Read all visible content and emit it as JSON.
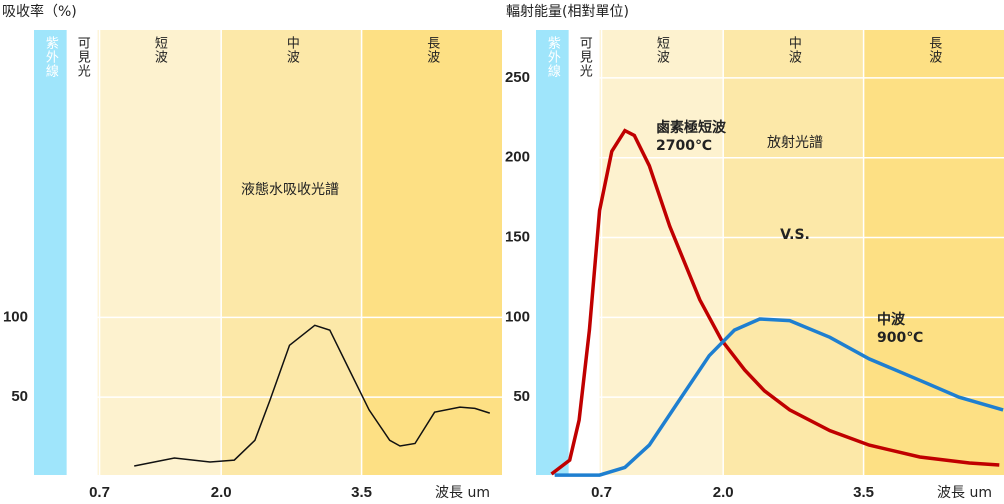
{
  "chart_data": [
    {
      "type": "line",
      "title": "吸收率（%)",
      "xlabel": "波長 um",
      "xlim": [
        0,
        5
      ],
      "ylim": [
        0,
        280
      ],
      "xticks": [
        0.7,
        {
          "value": 2,
          "label": "2.0"
        },
        3.5
      ],
      "yticks": [
        50,
        100
      ],
      "bands": [
        {
          "label": "紫外線",
          "from": 0,
          "to": 0.35,
          "color": "#9fe5fb"
        },
        {
          "label": "可見光",
          "from": 0.35,
          "to": 0.68,
          "color": "#ffffff"
        },
        {
          "label": "短波",
          "from": 0.68,
          "to": 2.0,
          "color": "#fdf2cf"
        },
        {
          "label": "中波",
          "from": 2.0,
          "to": 3.5,
          "color": "#fce8a8"
        },
        {
          "label": "長波",
          "from": 3.5,
          "to": 5.0,
          "color": "#fde084"
        }
      ],
      "annotations": [
        "液態水吸收光譜"
      ],
      "series": [
        {
          "color": "#111111",
          "x": [
            1.07,
            1.5,
            1.88,
            2.14,
            2.36,
            2.52,
            2.73,
            3.0,
            3.16,
            3.37,
            3.58,
            3.8,
            3.91,
            4.07,
            4.28,
            4.55,
            4.71,
            4.87
          ],
          "values": [
            6.9,
            11.9,
            9.4,
            10.6,
            23,
            48,
            82.5,
            95,
            92,
            67,
            42,
            23,
            19.4,
            21,
            40.6,
            43.8,
            43,
            40
          ]
        }
      ]
    },
    {
      "type": "line",
      "title": "輻射能量(相對單位)",
      "xlabel": "波長 um",
      "xlim": [
        0,
        5
      ],
      "ylim": [
        0,
        280
      ],
      "xticks": [
        0.7,
        {
          "value": 2,
          "label": "2.0"
        },
        3.5
      ],
      "yticks": [
        50,
        100,
        150,
        200,
        250
      ],
      "bands": [
        {
          "label": "紫外線",
          "from": 0,
          "to": 0.35,
          "color": "#9fe5fb"
        },
        {
          "label": "可見光",
          "from": 0.35,
          "to": 0.68,
          "color": "#ffffff"
        },
        {
          "label": "短波",
          "from": 0.68,
          "to": 2.0,
          "color": "#fdf2cf"
        },
        {
          "label": "中波",
          "from": 2.0,
          "to": 3.5,
          "color": "#fce8a8"
        },
        {
          "label": "長波",
          "from": 3.5,
          "to": 5.0,
          "color": "#fde084"
        }
      ],
      "annotations": [
        "放射光譜",
        "V.S."
      ],
      "series": [
        {
          "name": "鹵素極短波",
          "sublabel": "2700℃",
          "color": "#c00000",
          "x": [
            0.166,
            0.36,
            0.46,
            0.57,
            0.68,
            0.81,
            0.95,
            1.05,
            1.21,
            1.43,
            1.75,
            1.98,
            2.23,
            2.44,
            2.71,
            3.14,
            3.56,
            4.1,
            4.63,
            4.95
          ],
          "values": [
            1.9,
            10.6,
            35.6,
            92,
            167,
            204,
            217,
            214,
            195,
            157,
            111,
            86,
            67,
            54,
            42,
            29,
            20,
            12.5,
            8.8,
            7.5
          ]
        },
        {
          "name": "中波",
          "sublabel": "900℃",
          "color": "#1e7fd0",
          "x": [
            0.2,
            0.68,
            0.95,
            1.21,
            1.53,
            1.85,
            2.12,
            2.39,
            2.71,
            3.14,
            3.56,
            4.1,
            4.52,
            4.99
          ],
          "values": [
            1.2,
            1.2,
            6,
            20,
            48,
            76,
            92,
            99,
            98,
            87.5,
            74,
            60.6,
            50,
            42
          ]
        }
      ]
    }
  ]
}
